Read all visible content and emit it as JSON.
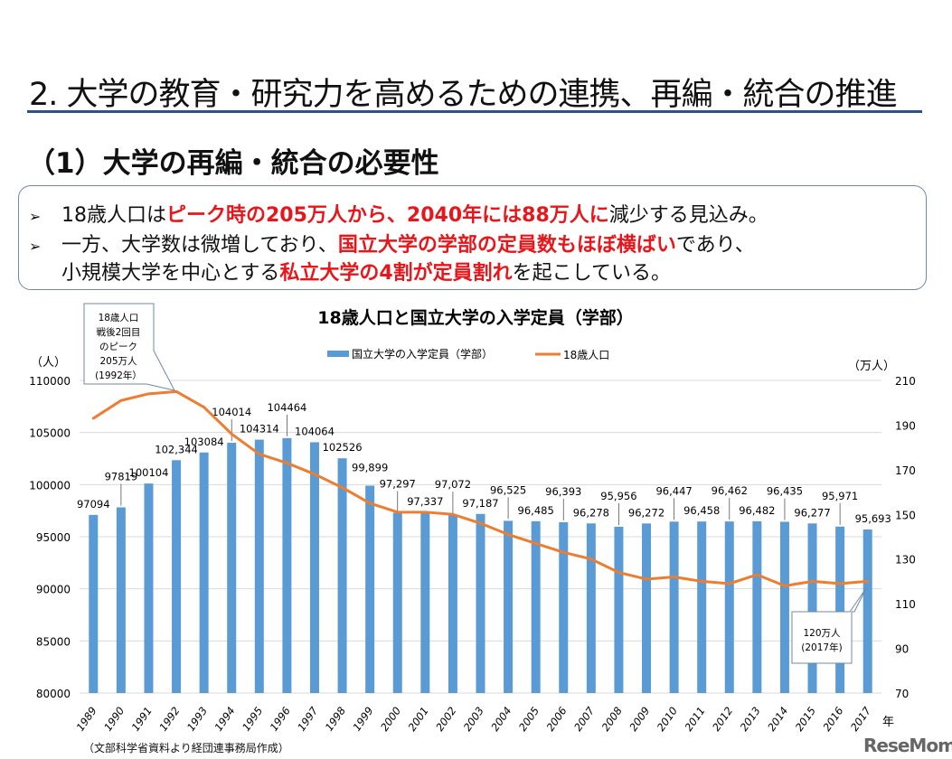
{
  "page": {
    "title": "2. 大学の教育・研究力を高めるための連携、再編・統合の推進",
    "subtitle": "（1）大学の再編・統合の必要性",
    "bullets": [
      {
        "marker": "➢",
        "parts": [
          {
            "text": "18歳人口は",
            "em": false
          },
          {
            "text": "ピーク時の205万人から、2040年には88万人に",
            "em": true
          },
          {
            "text": "減少する見込み。",
            "em": false
          }
        ]
      },
      {
        "marker": "➢",
        "parts": [
          {
            "text": "一方、大学数は微増しており、",
            "em": false
          },
          {
            "text": "国立大学の学部の定員数もほぼ横ばい",
            "em": true
          },
          {
            "text": "であり、",
            "em": false
          }
        ]
      },
      {
        "marker": "",
        "parts": [
          {
            "text": "小規模大学を中心とする",
            "em": false
          },
          {
            "text": "私立大学の4割が定員割れ",
            "em": true
          },
          {
            "text": "を起こしている。",
            "em": false
          }
        ]
      }
    ],
    "source": "（文部科学省資料より経団連事務局作成）",
    "watermark": "ReseMom"
  },
  "chart_data": {
    "type": "bar+line",
    "title": "18歳人口と国立大学の入学定員（学部）",
    "legend_position": "top",
    "grid": true,
    "categories": [
      "1989",
      "1990",
      "1991",
      "1992",
      "1993",
      "1994",
      "1995",
      "1996",
      "1997",
      "1998",
      "1999",
      "2000",
      "2001",
      "2002",
      "2003",
      "2004",
      "2005",
      "2006",
      "2007",
      "2008",
      "2009",
      "2010",
      "2011",
      "2012",
      "2013",
      "2014",
      "2015",
      "2016",
      "2017"
    ],
    "xlabel": "年",
    "y_left": {
      "label": "（人）",
      "lim": [
        80000,
        110000
      ],
      "ticks": [
        "80000",
        "85000",
        "90000",
        "95000",
        "100000",
        "105000",
        "110000"
      ]
    },
    "y_right": {
      "label": "（万人）",
      "lim": [
        70,
        210
      ],
      "ticks": [
        "70",
        "90",
        "110",
        "130",
        "150",
        "170",
        "190",
        "210"
      ]
    },
    "series": [
      {
        "name": "国立大学の入学定員（学部）",
        "type": "bar",
        "axis": "left",
        "color": "#5b9bd5",
        "values": [
          97094,
          97819,
          100104,
          102344,
          103084,
          104014,
          104314,
          104464,
          104064,
          102526,
          99899,
          97297,
          97337,
          97072,
          97187,
          96525,
          96485,
          96393,
          96278,
          95956,
          96272,
          96447,
          96458,
          96462,
          96482,
          96435,
          96277,
          95971,
          95693
        ],
        "labels": [
          "97094",
          "97819",
          "100104",
          "102,344",
          "103084",
          "104014",
          "104314",
          "104464",
          "104064",
          "102526",
          "99,899",
          "97,297",
          "97,337",
          "97,072",
          "97,187",
          "96,525",
          "96,485",
          "96,393",
          "96,278",
          "95,956",
          "96,272",
          "96,447",
          "96,458",
          "96,462",
          "96,482",
          "96,435",
          "96,277",
          "95,971",
          "95,693"
        ]
      },
      {
        "name": "18歳人口",
        "type": "line",
        "axis": "right",
        "color": "#ed7d31",
        "values": [
          193,
          201,
          204,
          205,
          198,
          186,
          177,
          173,
          168,
          162,
          155,
          151,
          151,
          150,
          146,
          141,
          137,
          133,
          130,
          124,
          121,
          122,
          120,
          119,
          123,
          118,
          120,
          119,
          120
        ]
      }
    ],
    "annotations": [
      {
        "lines": [
          "18歳人口",
          "戦後2回目",
          "のピーク",
          "205万人",
          "(1992年）"
        ],
        "category": "1992"
      },
      {
        "lines": [
          "120万人",
          "(2017年)"
        ],
        "category": "2017"
      }
    ]
  }
}
